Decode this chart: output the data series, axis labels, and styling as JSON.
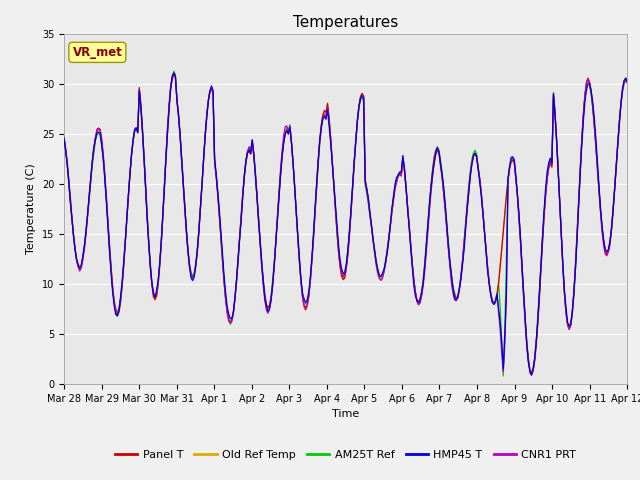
{
  "title": "Temperatures",
  "xlabel": "Time",
  "ylabel": "Temperature (C)",
  "ylim": [
    0,
    35
  ],
  "yticks": [
    0,
    5,
    10,
    15,
    20,
    25,
    30,
    35
  ],
  "fig_bg_color": "#f0f0f0",
  "plot_bg_color": "#e8e8e8",
  "legend_entries": [
    "Panel T",
    "Old Ref Temp",
    "AM25T Ref",
    "HMP45 T",
    "CNR1 PRT"
  ],
  "line_colors": [
    "#cc0000",
    "#ddaa00",
    "#00cc00",
    "#0000dd",
    "#bb00bb"
  ],
  "annotation_text": "VR_met",
  "annotation_box_facecolor": "#ffff99",
  "annotation_box_edgecolor": "#999900",
  "annotation_text_color": "#880000",
  "num_days": 15,
  "x_tick_labels": [
    "Mar 28",
    "Mar 29",
    "Mar 30",
    "Mar 31",
    "Apr 1",
    "Apr 2",
    "Apr 3",
    "Apr 4",
    "Apr 5",
    "Apr 6",
    "Apr 7",
    "Apr 8",
    "Apr 9",
    "Apr 10",
    "Apr 11",
    "Apr 12"
  ],
  "grid_color": "#ffffff",
  "title_fontsize": 11,
  "label_fontsize": 8,
  "tick_fontsize": 7,
  "legend_fontsize": 8
}
